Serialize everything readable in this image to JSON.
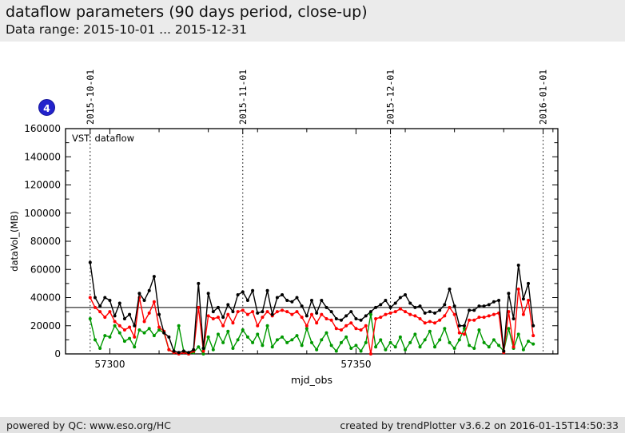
{
  "header": {
    "title": "dataflow parameters (90 days period, close-up)",
    "subtitle": "Data range: 2015-10-01 ... 2015-12-31"
  },
  "badge": {
    "label": "4",
    "color": "#2222cc"
  },
  "footer": {
    "left": "powered by QC: www.eso.org/HC",
    "right": "created by trendPlotter v3.6.2 on 2016-01-15T14:50:33"
  },
  "chart_data": {
    "type": "line",
    "title": "VST: dataflow",
    "xlabel": "mjd_obs",
    "ylabel": "dataVol_(MB)",
    "xlim": [
      57291,
      57391
    ],
    "ylim": [
      0,
      160000
    ],
    "x_major_ticks": [
      57300,
      57350
    ],
    "x_minor_tick_step": 10,
    "y_major_tick_step": 20000,
    "y_minor_tick_step": 10000,
    "grid": "vertical-dotted-date-lines-only",
    "legend_position": "none",
    "reference_line_y": 33000,
    "date_lines": [
      {
        "label": "2015-10-01",
        "mjd": 57296
      },
      {
        "label": "2015-11-01",
        "mjd": 57327
      },
      {
        "label": "2015-12-01",
        "mjd": 57357
      },
      {
        "label": "2016-01-01",
        "mjd": 57388
      }
    ],
    "x_start_mjd": 57296,
    "x_step": 1,
    "marker": "filled-circle",
    "series": [
      {
        "name": "green",
        "color": "#009900",
        "values": [
          25000,
          10000,
          4000,
          13000,
          12000,
          20000,
          15000,
          9000,
          11000,
          5000,
          17000,
          15000,
          18000,
          13000,
          17000,
          15000,
          3000,
          1000,
          20000,
          2000,
          0,
          1000,
          5000,
          0,
          12000,
          3000,
          14000,
          8000,
          16000,
          4000,
          10000,
          17000,
          12000,
          8000,
          14000,
          6000,
          20000,
          5000,
          10000,
          12000,
          8000,
          10000,
          13000,
          6000,
          18000,
          8000,
          3000,
          10000,
          15000,
          6000,
          2000,
          8000,
          12000,
          4000,
          6000,
          2000,
          8000,
          28000,
          5000,
          10000,
          3000,
          8000,
          5000,
          12000,
          3000,
          8000,
          14000,
          5000,
          10000,
          16000,
          5000,
          10000,
          18000,
          8000,
          4000,
          10000,
          18000,
          6000,
          4000,
          17000,
          8000,
          5000,
          10000,
          6000,
          2000,
          18000,
          4000,
          14000,
          3000,
          9000,
          7000
        ]
      },
      {
        "name": "red",
        "color": "#ff0000",
        "values": [
          40000,
          33000,
          30000,
          26000,
          30000,
          23000,
          20000,
          17000,
          19000,
          12000,
          40000,
          23000,
          29000,
          37000,
          19000,
          16000,
          3000,
          1000,
          0,
          1000,
          0,
          2000,
          33000,
          2000,
          27000,
          25000,
          26000,
          20000,
          28000,
          22000,
          30000,
          31000,
          28000,
          30000,
          20000,
          26000,
          30000,
          27000,
          30000,
          31000,
          30000,
          28000,
          30000,
          26000,
          20000,
          28000,
          22000,
          28000,
          25000,
          24000,
          18000,
          17000,
          20000,
          22000,
          18000,
          17000,
          20000,
          0,
          25000,
          26000,
          28000,
          29000,
          30000,
          32000,
          30000,
          28000,
          27000,
          25000,
          22000,
          23000,
          22000,
          24000,
          27000,
          33000,
          28000,
          15000,
          14000,
          24000,
          24000,
          26000,
          26000,
          27000,
          28000,
          29000,
          1000,
          30000,
          5000,
          46000,
          28000,
          38000,
          13000
        ]
      },
      {
        "name": "black",
        "color": "#000000",
        "values": [
          65000,
          40000,
          34000,
          40000,
          38000,
          27000,
          36000,
          25000,
          28000,
          20000,
          43000,
          38000,
          45000,
          55000,
          28000,
          15000,
          12000,
          2000,
          1000,
          2000,
          1000,
          3000,
          50000,
          4000,
          43000,
          30000,
          33000,
          26000,
          35000,
          30000,
          42000,
          44000,
          38000,
          45000,
          29000,
          30000,
          45000,
          28000,
          40000,
          42000,
          38000,
          37000,
          40000,
          34000,
          27000,
          38000,
          29000,
          38000,
          33000,
          30000,
          25000,
          24000,
          27000,
          30000,
          25000,
          24000,
          27000,
          30000,
          33000,
          35000,
          38000,
          33000,
          36000,
          40000,
          42000,
          36000,
          33000,
          34000,
          29000,
          30000,
          29000,
          31000,
          35000,
          46000,
          34000,
          20000,
          20000,
          31000,
          31000,
          34000,
          34000,
          35000,
          37000,
          38000,
          2000,
          43000,
          25000,
          63000,
          39000,
          50000,
          20000
        ]
      }
    ]
  }
}
